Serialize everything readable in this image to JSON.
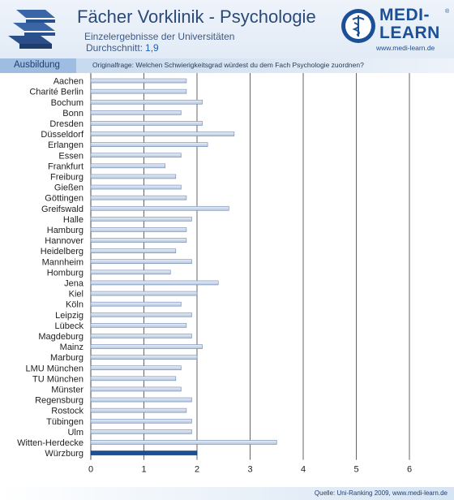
{
  "header": {
    "title": "Fächer Vorklinik - Psychologie",
    "subtitle": "Einzelergebnisse der Universitäten",
    "average_label": "Durchschnitt:",
    "average_value": "1,9"
  },
  "logo": {
    "line1": "MEDI-",
    "line2": "LEARN",
    "registered": "®",
    "url": "www.medi-learn.de"
  },
  "ribbon": {
    "section": "Ausbildung",
    "question": "Originalfrage: Welchen Schwierigkeitsgrad würdest du dem Fach Psychologie zuordnen?"
  },
  "footer": {
    "source": "Quelle: Uni-Ranking 2009, www.medi-learn.de"
  },
  "colors": {
    "bar": "#c3d2e6",
    "bar_highlight": "#1c4f95",
    "header_text": "#2c4a78"
  },
  "chart_data": {
    "type": "bar",
    "orientation": "horizontal",
    "categories": [
      "Aachen",
      "Charité Berlin",
      "Bochum",
      "Bonn",
      "Dresden",
      "Düsseldorf",
      "Erlangen",
      "Essen",
      "Frankfurt",
      "Freiburg",
      "Gießen",
      "Göttingen",
      "Greifswald",
      "Halle",
      "Hamburg",
      "Hannover",
      "Heidelberg",
      "Mannheim",
      "Homburg",
      "Jena",
      "Kiel",
      "Köln",
      "Leipzig",
      "Lübeck",
      "Magdeburg",
      "Mainz",
      "Marburg",
      "LMU München",
      "TU München",
      "Münster",
      "Regensburg",
      "Rostock",
      "Tübingen",
      "Ulm",
      "Witten-Herdecke",
      "Würzburg"
    ],
    "values": [
      1.8,
      1.8,
      2.1,
      1.7,
      2.1,
      2.7,
      2.2,
      1.7,
      1.4,
      1.6,
      1.7,
      1.8,
      2.6,
      1.9,
      1.8,
      1.8,
      1.6,
      1.9,
      1.5,
      2.4,
      2.0,
      1.7,
      1.9,
      1.8,
      1.9,
      2.1,
      2.0,
      1.7,
      1.6,
      1.7,
      1.9,
      1.8,
      1.9,
      1.9,
      3.5,
      2.0
    ],
    "highlight": "Würzburg",
    "xlim": [
      0,
      6
    ],
    "xticks": [
      "0",
      "1",
      "2",
      "3",
      "4",
      "5",
      "6"
    ],
    "grid": true,
    "title": "",
    "xlabel": "",
    "ylabel": ""
  }
}
